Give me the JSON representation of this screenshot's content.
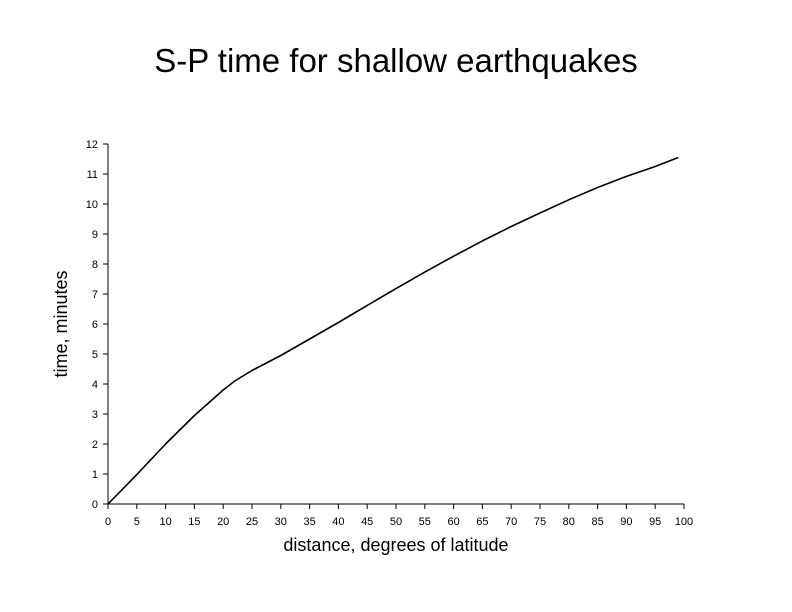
{
  "chart_data": {
    "type": "line",
    "title": "S-P time for shallow earthquakes",
    "xlabel": "distance, degrees of latitude",
    "ylabel": "time, minutes",
    "xlim": [
      0,
      100
    ],
    "ylim": [
      0,
      12
    ],
    "xticks": [
      "0",
      "5",
      "10",
      "15",
      "20",
      "25",
      "30",
      "35",
      "40",
      "45",
      "50",
      "55",
      "60",
      "65",
      "70",
      "75",
      "80",
      "85",
      "90",
      "95",
      "100"
    ],
    "yticks": [
      "0",
      "1",
      "2",
      "3",
      "4",
      "5",
      "6",
      "7",
      "8",
      "9",
      "10",
      "11",
      "12"
    ],
    "grid": false,
    "legend": "none",
    "line_color": "#000000",
    "series": [
      {
        "x": [
          0,
          5,
          10,
          15,
          20,
          22,
          25,
          30,
          35,
          40,
          45,
          50,
          55,
          60,
          65,
          70,
          75,
          80,
          85,
          90,
          95,
          99
        ],
        "values": [
          0,
          0.98,
          2.0,
          2.95,
          3.8,
          4.1,
          4.45,
          4.95,
          5.5,
          6.05,
          6.62,
          7.18,
          7.73,
          8.26,
          8.77,
          9.25,
          9.7,
          10.14,
          10.55,
          10.92,
          11.25,
          11.55
        ]
      }
    ]
  }
}
